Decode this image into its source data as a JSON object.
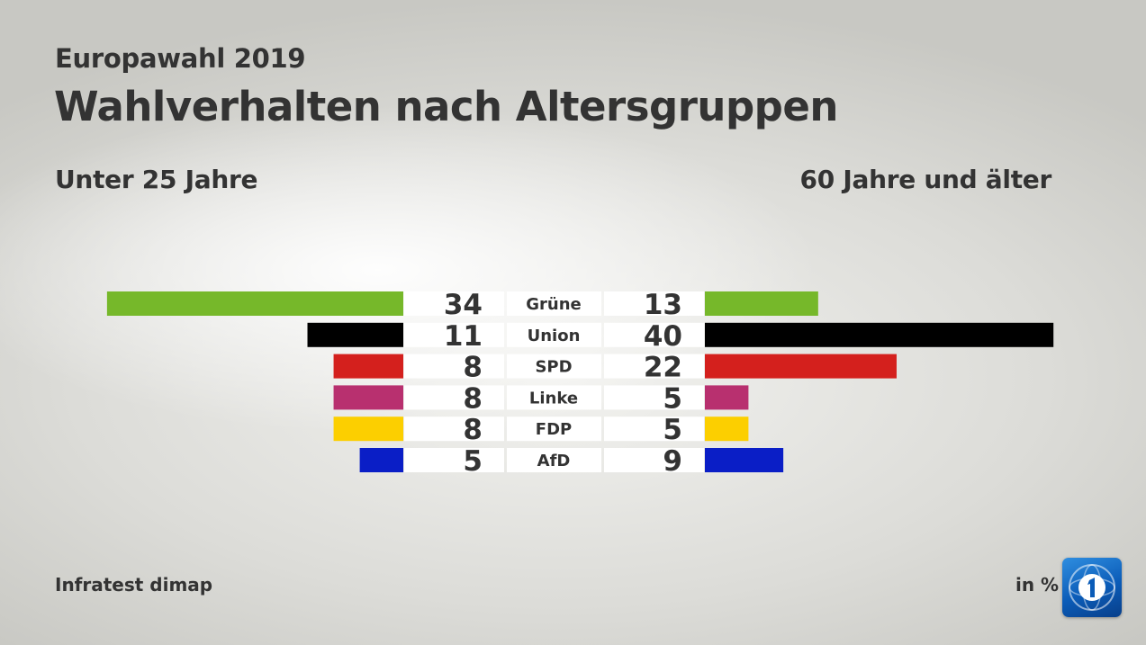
{
  "header": {
    "kicker": "Europawahl 2019",
    "title": "Wahlverhalten nach Altersgruppen",
    "left_group": "Unter 25 Jahre",
    "right_group": "60 Jahre und älter"
  },
  "footer": {
    "source": "Infratest dimap",
    "unit": "in %"
  },
  "logo": {
    "icon": "ard-das-erste-logo-icon",
    "color": "#1a6fcf"
  },
  "chart_data": {
    "type": "bar",
    "orientation": "butterfly",
    "categories": [
      "Grüne",
      "Union",
      "SPD",
      "Linke",
      "FDP",
      "AfD"
    ],
    "colors": [
      "#76b82a",
      "#000000",
      "#d4201d",
      "#b8306f",
      "#fccf00",
      "#0a1ec6"
    ],
    "series": [
      {
        "name": "Unter 25 Jahre",
        "side": "left",
        "values": [
          34,
          11,
          8,
          8,
          8,
          5
        ]
      },
      {
        "name": "60 Jahre und älter",
        "side": "right",
        "values": [
          13,
          40,
          22,
          5,
          5,
          9
        ]
      }
    ],
    "unit": "in %",
    "grid": false
  }
}
